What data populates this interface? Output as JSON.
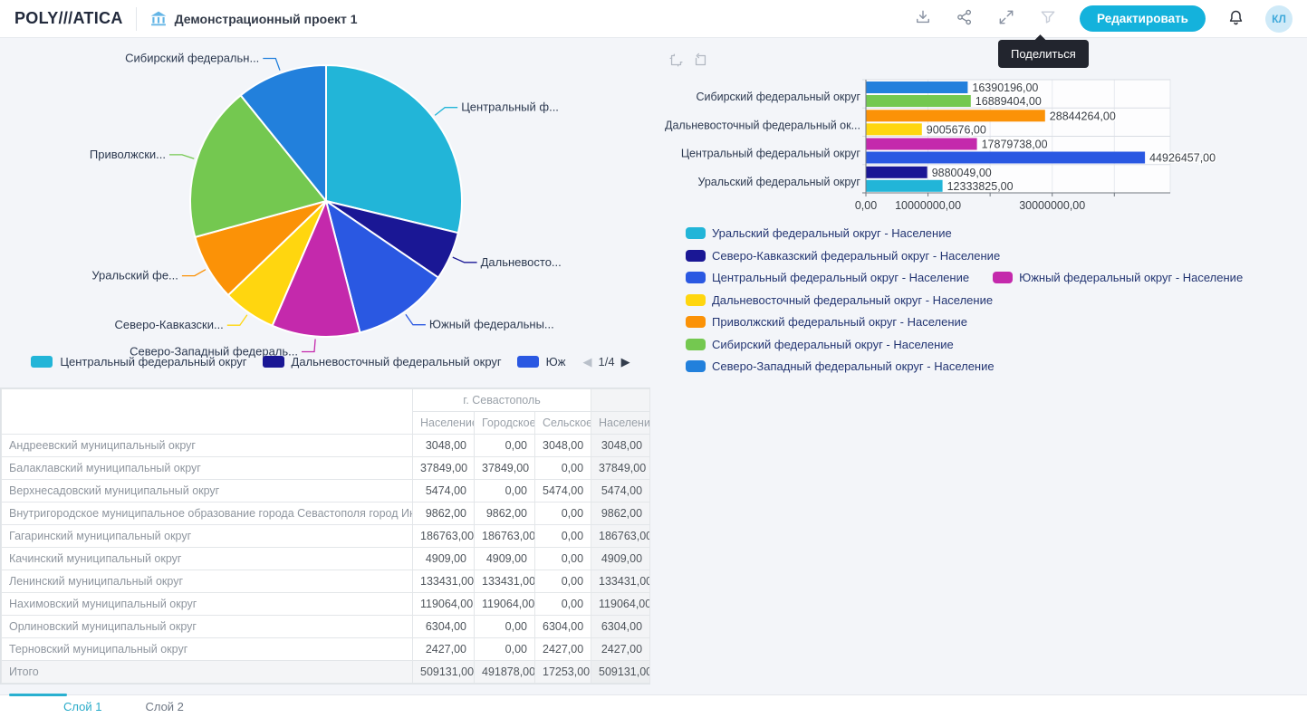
{
  "topbar": {
    "logo": "POLY///ATICA",
    "title": "Демонстрационный проект 1",
    "tooltip": "Поделиться",
    "edit_button": "Редактировать",
    "avatar": "КЛ",
    "accent_color": "#14b2dc"
  },
  "layers": {
    "tabs": [
      {
        "label": "Слой 1",
        "active": true
      },
      {
        "label": "Слой 2",
        "active": false
      }
    ]
  },
  "pie": {
    "legend_page": "1/4",
    "legend_items": [
      {
        "label": "Центральный федеральный округ",
        "color": "#22B5D8"
      },
      {
        "label": "Дальневосточный федеральный округ",
        "color": "#1A1795"
      },
      {
        "label": "Юж",
        "color": "#2A58E2"
      }
    ]
  },
  "chart_data": [
    {
      "type": "pie",
      "measure": "Население",
      "direction": "clockwise",
      "start_angle_deg": 0,
      "slices": [
        {
          "label": "Центральный федеральный округ",
          "label_short": "Центральный ф...",
          "value": 44926457,
          "color": "#22B5D8"
        },
        {
          "label": "Дальневосточный федеральный округ",
          "label_short": "Дальневосто...",
          "value": 9005676,
          "color": "#1A1795"
        },
        {
          "label": "Южный федеральный округ",
          "label_short": "Южный федеральны...",
          "value": 17879738,
          "color": "#2A58E2"
        },
        {
          "label": "Северо-Западный федеральный округ",
          "label_short": "Северо-Западный федераль...",
          "value": 16390196,
          "color": "#C429AC"
        },
        {
          "label": "Северо-Кавказский федеральный округ",
          "label_short": "Северо-Кавказски...",
          "value": 9880049,
          "color": "#FFD60F"
        },
        {
          "label": "Уральский федеральный округ",
          "label_short": "Уральский фе...",
          "value": 12333825,
          "color": "#FB9207"
        },
        {
          "label": "Приволжский федеральный округ",
          "label_short": "Приволжски...",
          "value": 28844264,
          "color": "#74C850"
        },
        {
          "label": "Сибирский федеральный округ",
          "label_short": "Сибирский федеральн...",
          "value": 16889404,
          "color": "#2280DC"
        }
      ]
    },
    {
      "type": "bar",
      "orientation": "horizontal",
      "x_max": 49000000,
      "x_ticks": [
        {
          "value": 0,
          "label": "0,00"
        },
        {
          "value": 10000000,
          "label": "10000000,00"
        },
        {
          "value": 20000000,
          "label": ""
        },
        {
          "value": 30000000,
          "label": "30000000,00"
        },
        {
          "value": 40000000,
          "label": ""
        }
      ],
      "axis_labels": [
        "Сибирский федеральный округ",
        "Дальневосточный федеральный ок...",
        "Центральный федеральный округ",
        "Уральский федеральный округ"
      ],
      "bars": [
        {
          "label": "Северо-Западный федеральный округ",
          "value": 16390196,
          "display": "16390196,00",
          "color": "#2280DC"
        },
        {
          "label": "Сибирский федеральный округ",
          "value": 16889404,
          "display": "16889404,00",
          "color": "#74C850"
        },
        {
          "label": "Приволжский федеральный округ",
          "value": 28844264,
          "display": "28844264,00",
          "color": "#FB9207"
        },
        {
          "label": "Дальневосточный федеральный округ",
          "value": 9005676,
          "display": "9005676,00",
          "color": "#FFD60F"
        },
        {
          "label": "Южный федеральный округ",
          "value": 17879738,
          "display": "17879738,00",
          "color": "#C429AC"
        },
        {
          "label": "Центральный федеральный округ",
          "value": 44926457,
          "display": "44926457,00",
          "color": "#2A58E2"
        },
        {
          "label": "Северо-Кавказский федеральный округ",
          "value": 9880049,
          "display": "9880049,00",
          "color": "#1A1795"
        },
        {
          "label": "Уральский федеральный округ",
          "value": 12333825,
          "display": "12333825,00",
          "color": "#22B5D8"
        }
      ],
      "legend_rows": [
        [
          {
            "label": "Уральский федеральный округ - Население",
            "color": "#22B5D8"
          }
        ],
        [
          {
            "label": "Северо-Кавказский федеральный округ - Население",
            "color": "#1A1795"
          }
        ],
        [
          {
            "label": "Центральный федеральный округ - Население",
            "color": "#2A58E2"
          },
          {
            "label": "Южный федеральный округ - Население",
            "color": "#C429AC"
          }
        ],
        [
          {
            "label": "Дальневосточный федеральный округ - Население",
            "color": "#FFD60F"
          }
        ],
        [
          {
            "label": "Приволжский федеральный округ - Население",
            "color": "#FB9207"
          }
        ],
        [
          {
            "label": "Сибирский федеральный округ - Население",
            "color": "#74C850"
          }
        ],
        [
          {
            "label": "Северо-Западный федеральный округ - Население",
            "color": "#2280DC"
          }
        ]
      ]
    }
  ],
  "table": {
    "group_header": "г. Севастополь",
    "columns": [
      "Население",
      "Городское",
      "Сельское",
      "Население"
    ],
    "rows": [
      {
        "label": "Андреевский муниципальный округ",
        "values": [
          "3048,00",
          "0,00",
          "3048,00",
          "3048,00"
        ]
      },
      {
        "label": "Балаклавский муниципальный округ",
        "values": [
          "37849,00",
          "37849,00",
          "0,00",
          "37849,00"
        ]
      },
      {
        "label": "Верхнесадовский муниципальный округ",
        "values": [
          "5474,00",
          "0,00",
          "5474,00",
          "5474,00"
        ]
      },
      {
        "label": "Внутригородское муниципальное образование города Севастополя город Инкерман",
        "values": [
          "9862,00",
          "9862,00",
          "0,00",
          "9862,00"
        ]
      },
      {
        "label": "Гагаринский муниципальный округ",
        "values": [
          "186763,00",
          "186763,00",
          "0,00",
          "186763,00"
        ]
      },
      {
        "label": "Качинский муниципальный округ",
        "values": [
          "4909,00",
          "4909,00",
          "0,00",
          "4909,00"
        ]
      },
      {
        "label": "Ленинский муниципальный округ",
        "values": [
          "133431,00",
          "133431,00",
          "0,00",
          "133431,00"
        ]
      },
      {
        "label": "Нахимовский муниципальный округ",
        "values": [
          "119064,00",
          "119064,00",
          "0,00",
          "119064,00"
        ]
      },
      {
        "label": "Орлиновский муниципальный округ",
        "values": [
          "6304,00",
          "0,00",
          "6304,00",
          "6304,00"
        ]
      },
      {
        "label": "Терновский муниципальный округ",
        "values": [
          "2427,00",
          "0,00",
          "2427,00",
          "2427,00"
        ]
      }
    ],
    "total": {
      "label": "Итого",
      "values": [
        "509131,00",
        "491878,00",
        "17253,00",
        "509131,00"
      ]
    }
  }
}
